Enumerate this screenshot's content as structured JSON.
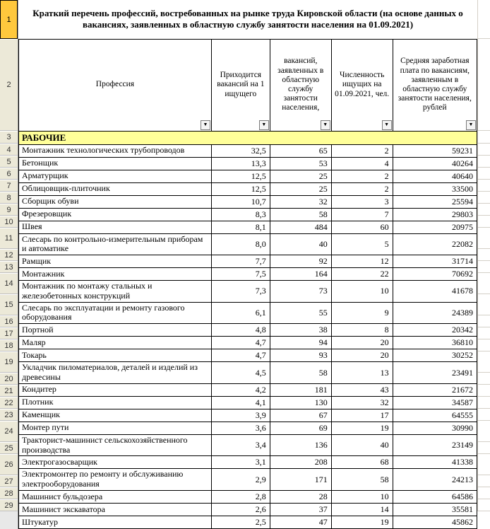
{
  "title": "Краткий перечень профессий, востребованных  на рынке труда Кировской области (на основе данных о вакансиях, заявленных в областную службу занятости населения на 01.09.2021)",
  "columns": {
    "c0": "Профессия",
    "c1": "Приходится вакансий на 1 ищущего",
    "c2": "вакансий, заявленных в областную службу занятости населения,",
    "c3": "Численность ищущих на 01.09.2021, чел.",
    "c4": "Средняя заработная плата по вакансиям, заявленным в областную службу занятости населения, рублей"
  },
  "section": "РАБОЧИЕ",
  "rows": [
    {
      "n": "4",
      "name": "Монтажник технологических трубопроводов",
      "v1": "32,5",
      "v2": "65",
      "v3": "2",
      "v4": "59231"
    },
    {
      "n": "5",
      "name": "Бетонщик",
      "v1": "13,3",
      "v2": "53",
      "v3": "4",
      "v4": "40264"
    },
    {
      "n": "6",
      "name": "Арматурщик",
      "v1": "12,5",
      "v2": "25",
      "v3": "2",
      "v4": "40640"
    },
    {
      "n": "7",
      "name": "Облицовщик-плиточник",
      "v1": "12,5",
      "v2": "25",
      "v3": "2",
      "v4": "33500"
    },
    {
      "n": "8",
      "name": "Сборщик обуви",
      "v1": "10,7",
      "v2": "32",
      "v3": "3",
      "v4": "25594"
    },
    {
      "n": "9",
      "name": "Фрезеровщик",
      "v1": "8,3",
      "v2": "58",
      "v3": "7",
      "v4": "29803"
    },
    {
      "n": "10",
      "name": "Швея",
      "v1": "8,1",
      "v2": "484",
      "v3": "60",
      "v4": "20975"
    },
    {
      "n": "11",
      "name": "Слесарь по контрольно-измерительным приборам и автоматике",
      "v1": "8,0",
      "v2": "40",
      "v3": "5",
      "v4": "22082"
    },
    {
      "n": "12",
      "name": "Рамщик",
      "v1": "7,7",
      "v2": "92",
      "v3": "12",
      "v4": "31714"
    },
    {
      "n": "13",
      "name": "Монтажник",
      "v1": "7,5",
      "v2": "164",
      "v3": "22",
      "v4": "70692"
    },
    {
      "n": "14",
      "name": "Монтажник по монтажу стальных и железобетонных конструкций",
      "v1": "7,3",
      "v2": "73",
      "v3": "10",
      "v4": "41678"
    },
    {
      "n": "15",
      "name": "Слесарь по эксплуатации и ремонту газового оборудования",
      "v1": "6,1",
      "v2": "55",
      "v3": "9",
      "v4": "24389"
    },
    {
      "n": "16",
      "name": "Портной",
      "v1": "4,8",
      "v2": "38",
      "v3": "8",
      "v4": "20342"
    },
    {
      "n": "17",
      "name": "Маляр",
      "v1": "4,7",
      "v2": "94",
      "v3": "20",
      "v4": "36810"
    },
    {
      "n": "18",
      "name": "Токарь",
      "v1": "4,7",
      "v2": "93",
      "v3": "20",
      "v4": "30252"
    },
    {
      "n": "19",
      "name": "Укладчик пиломатериалов, деталей и изделий из древесины",
      "v1": "4,5",
      "v2": "58",
      "v3": "13",
      "v4": "23491"
    },
    {
      "n": "20",
      "name": "Кондитер",
      "v1": "4,2",
      "v2": "181",
      "v3": "43",
      "v4": "21672"
    },
    {
      "n": "21",
      "name": "Плотник",
      "v1": "4,1",
      "v2": "130",
      "v3": "32",
      "v4": "34587"
    },
    {
      "n": "22",
      "name": "Каменщик",
      "v1": "3,9",
      "v2": "67",
      "v3": "17",
      "v4": "64555"
    },
    {
      "n": "23",
      "name": "Монтер пути",
      "v1": "3,6",
      "v2": "69",
      "v3": "19",
      "v4": "30990"
    },
    {
      "n": "24",
      "name": "Тракторист-машинист сельскохозяйственного производства",
      "v1": "3,4",
      "v2": "136",
      "v3": "40",
      "v4": "23149"
    },
    {
      "n": "25",
      "name": "Электрогазосварщик",
      "v1": "3,1",
      "v2": "208",
      "v3": "68",
      "v4": "41338"
    },
    {
      "n": "26",
      "name": "Электромонтер по ремонту и обслуживанию электрооборудования",
      "v1": "2,9",
      "v2": "171",
      "v3": "58",
      "v4": "24213"
    },
    {
      "n": "27",
      "name": "Машинист бульдозера",
      "v1": "2,8",
      "v2": "28",
      "v3": "10",
      "v4": "64586"
    },
    {
      "n": "28",
      "name": "Машинист экскаватора",
      "v1": "2,6",
      "v2": "37",
      "v3": "14",
      "v4": "35581"
    },
    {
      "n": "29",
      "name": "Штукатур",
      "v1": "2,5",
      "v2": "47",
      "v3": "19",
      "v4": "45862"
    }
  ],
  "heights": {
    "title": 55,
    "header": 130,
    "section": 18,
    "single": 17,
    "double": 30
  }
}
